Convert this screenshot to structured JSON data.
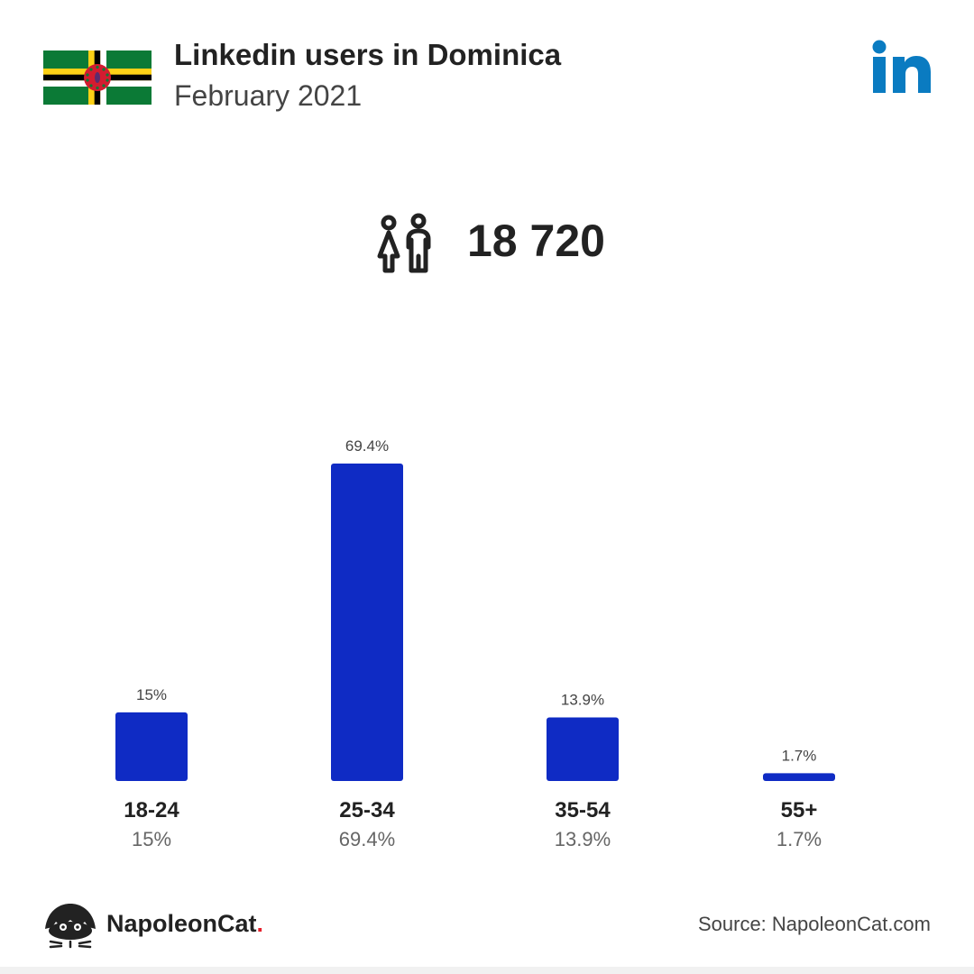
{
  "header": {
    "title": "Linkedin users in Dominica",
    "subtitle": "February 2021"
  },
  "icons": {
    "flag": "dominica-flag-icon",
    "logo": "linkedin-logo-icon",
    "users": "users-icon",
    "brand": "napoleoncat-logo-icon"
  },
  "summary": {
    "total_users": "18 720"
  },
  "colors": {
    "bar": "#0f2bc4",
    "linkedin": "#0a7bc1",
    "text": "#222222",
    "subtext": "#555555"
  },
  "chart_data": {
    "type": "bar",
    "categories": [
      "18-24",
      "25-34",
      "35-54",
      "55+"
    ],
    "values": [
      15,
      69.4,
      13.9,
      1.7
    ],
    "value_labels": [
      "15%",
      "69.4%",
      "13.9%",
      "1.7%"
    ],
    "unit": "%"
  },
  "footer": {
    "brand_name": "NapoleonCat",
    "brand_dot": ".",
    "source": "Source: NapoleonCat.com"
  }
}
